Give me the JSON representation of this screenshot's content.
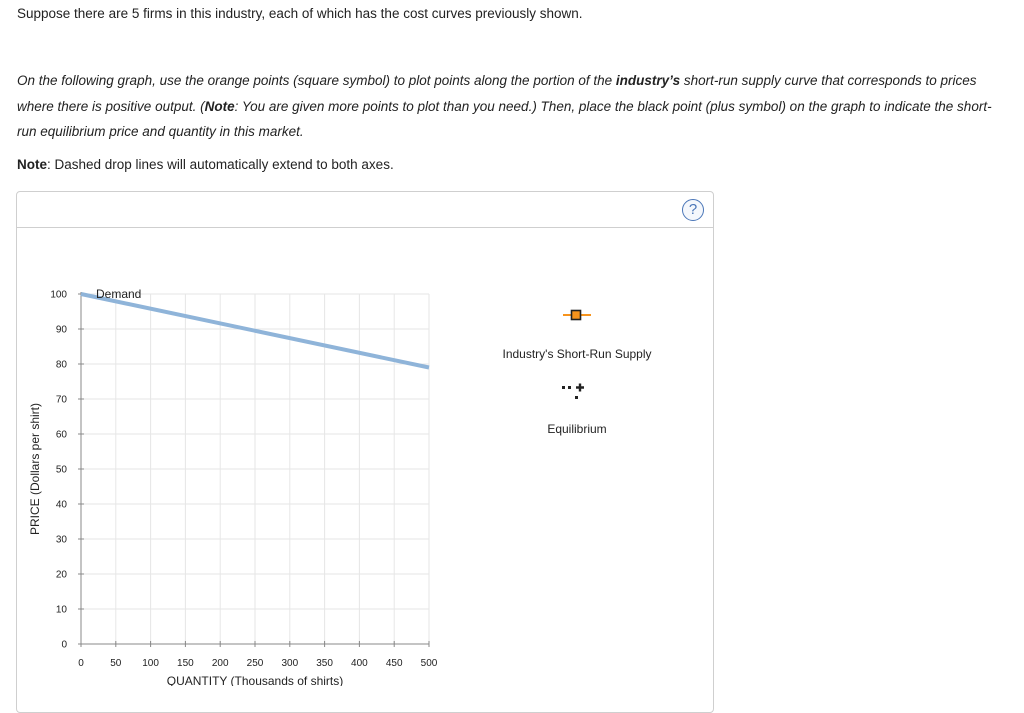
{
  "intro": {
    "line1": "Suppose there are 5 firms in this industry, each of which has the cost curves previously shown."
  },
  "instructions": {
    "part1": "On the following graph, use the orange points (square symbol) to plot points along the portion of the ",
    "bold_term": "industry’s",
    "part2": " short-run supply curve that corresponds to prices where there is positive output. (",
    "note_label": "Note",
    "part3": ": You are given more points to plot than you need.) Then, place the black point (plus symbol) on the graph to indicate the short-run equilibrium price and quantity in this market."
  },
  "note": {
    "label": "Note",
    "text": ": Dashed drop lines will automatically extend to both axes."
  },
  "help_button": {
    "label": "?"
  },
  "legend": {
    "supply_label": "Industry's Short-Run Supply",
    "equilibrium_label": "Equilibrium"
  },
  "colors": {
    "supply_orange": "#f7941d",
    "demand_blue": "#8fb4d9",
    "grid": "#e6e6e6",
    "axis": "#888888"
  },
  "chart_data": {
    "type": "line",
    "xlabel": "QUANTITY (Thousands of shirts)",
    "ylabel": "PRICE (Dollars per shirt)",
    "xlim": [
      0,
      500
    ],
    "ylim": [
      0,
      100
    ],
    "x_ticks": [
      0,
      50,
      100,
      150,
      200,
      250,
      300,
      350,
      400,
      450,
      500
    ],
    "y_ticks": [
      0,
      10,
      20,
      30,
      40,
      50,
      60,
      70,
      80,
      90,
      100
    ],
    "grid": true,
    "series": [
      {
        "name": "Demand",
        "x": [
          0,
          500
        ],
        "y": [
          100,
          79
        ]
      }
    ]
  }
}
